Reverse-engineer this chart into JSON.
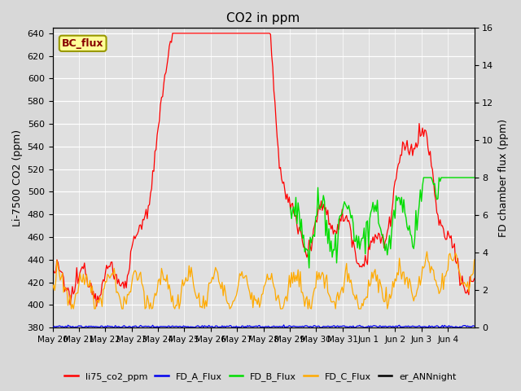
{
  "title": "CO2 in ppm",
  "ylabel_left": "Li-7500 CO2 (ppm)",
  "ylabel_right": "FD chamber flux (ppm)",
  "ylim_left": [
    380,
    645
  ],
  "ylim_right": [
    0,
    16
  ],
  "yticks_left": [
    380,
    400,
    420,
    440,
    460,
    480,
    500,
    520,
    540,
    560,
    580,
    600,
    620,
    640
  ],
  "yticks_right": [
    0,
    2,
    4,
    6,
    8,
    10,
    12,
    14,
    16
  ],
  "xtick_labels": [
    "May 20",
    "May 21",
    "May 22",
    "May 23",
    "May 24",
    "May 25",
    "May 26",
    "May 27",
    "May 28",
    "May 29",
    "May 30",
    "May 31",
    "Jun 1",
    "Jun 2",
    "Jun 3",
    "Jun 4"
  ],
  "colors": {
    "li75_co2_ppm": "#ff0000",
    "FD_A_Flux": "#0000ee",
    "FD_B_Flux": "#00dd00",
    "FD_C_Flux": "#ffaa00",
    "er_ANNnight": "#000000"
  },
  "bc_flux_box_facecolor": "#ffff99",
  "bc_flux_text_color": "#880000",
  "bc_flux_edge_color": "#999900",
  "fig_facecolor": "#d8d8d8",
  "axes_facecolor": "#e0e0e0",
  "grid_color": "#ffffff",
  "n_days": 16,
  "n_pts": 384
}
